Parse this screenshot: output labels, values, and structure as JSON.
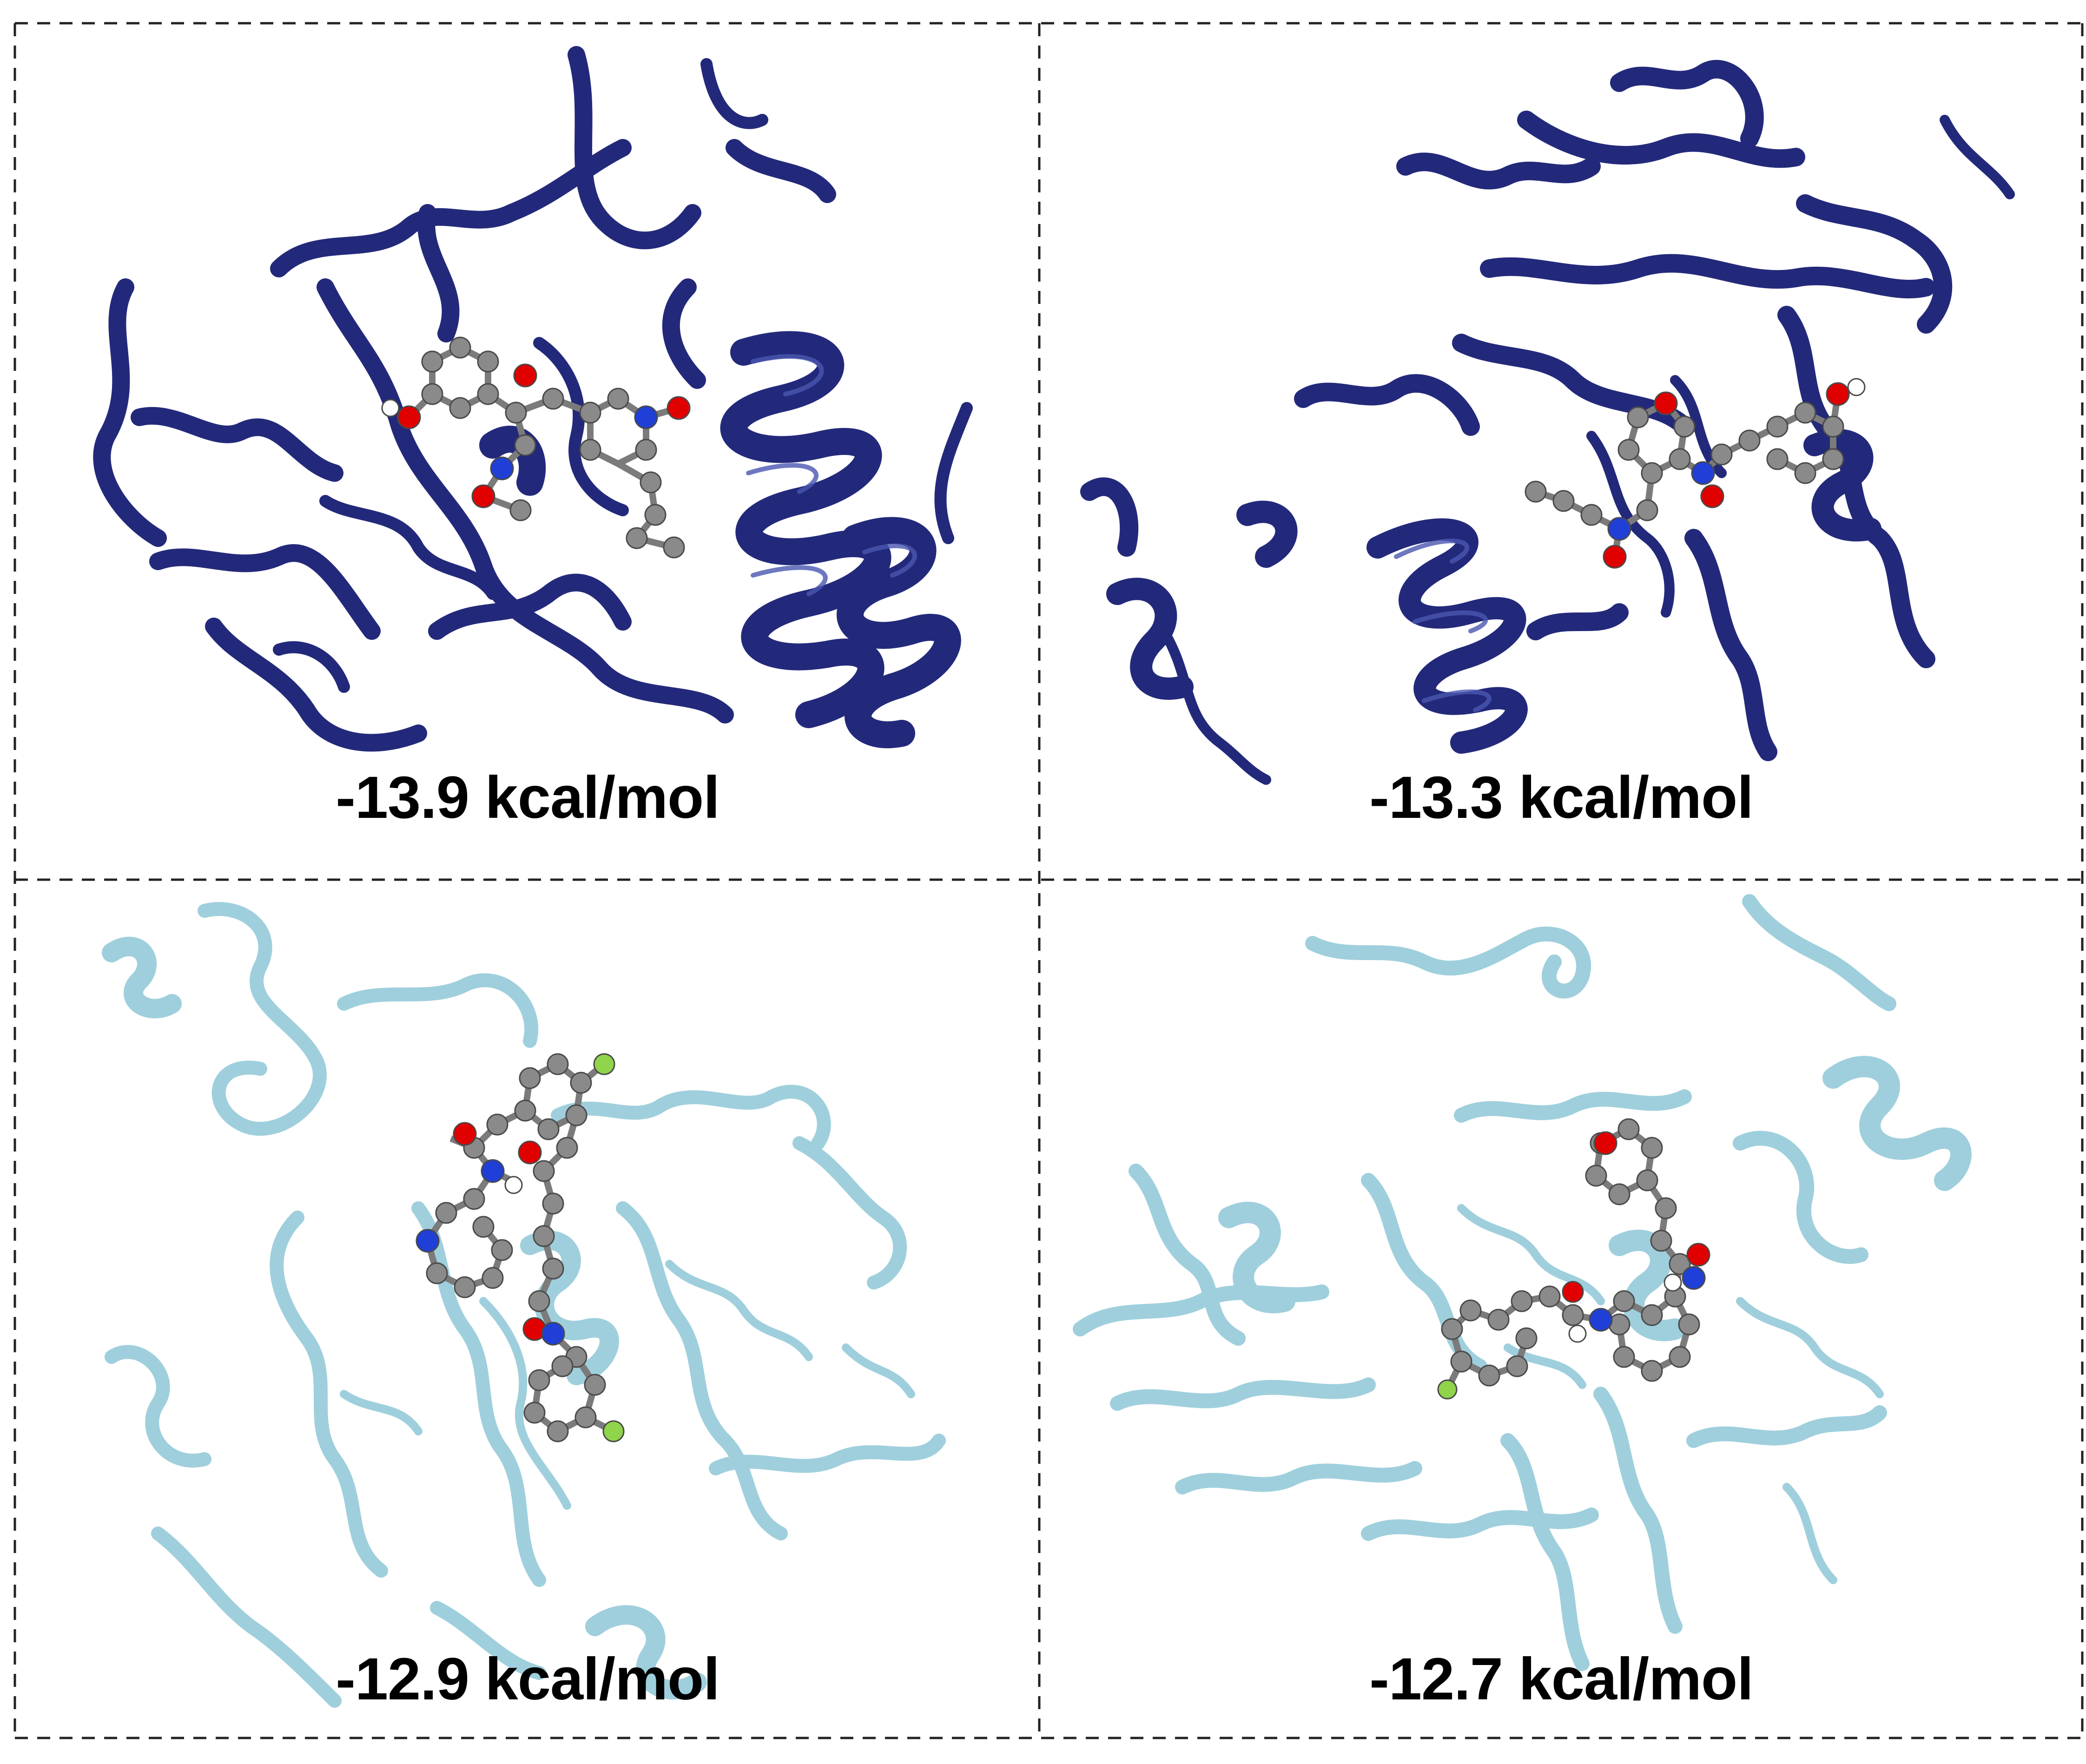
{
  "figure": {
    "panels": [
      {
        "label": "-13.9 kcal/mol",
        "ribbon_color": "#23297a",
        "ribbon_highlight": "#4a56b0"
      },
      {
        "label": "-13.3 kcal/mol",
        "ribbon_color": "#23297a",
        "ribbon_highlight": "#4a56b0"
      },
      {
        "label": "-12.9 kcal/mol",
        "ribbon_color": "#9fcfdc",
        "ribbon_highlight": "#cfe8ef"
      },
      {
        "label": "-12.7 kcal/mol",
        "ribbon_color": "#9fcfdc",
        "ribbon_highlight": "#cfe8ef"
      }
    ],
    "atom_colors": {
      "carbon": "#8a8a8a",
      "oxygen": "#e00000",
      "nitrogen": "#1f3fd6",
      "hydrogen": "#ffffff",
      "fluorine": "#8fd44a"
    },
    "border_color": "#222222"
  }
}
